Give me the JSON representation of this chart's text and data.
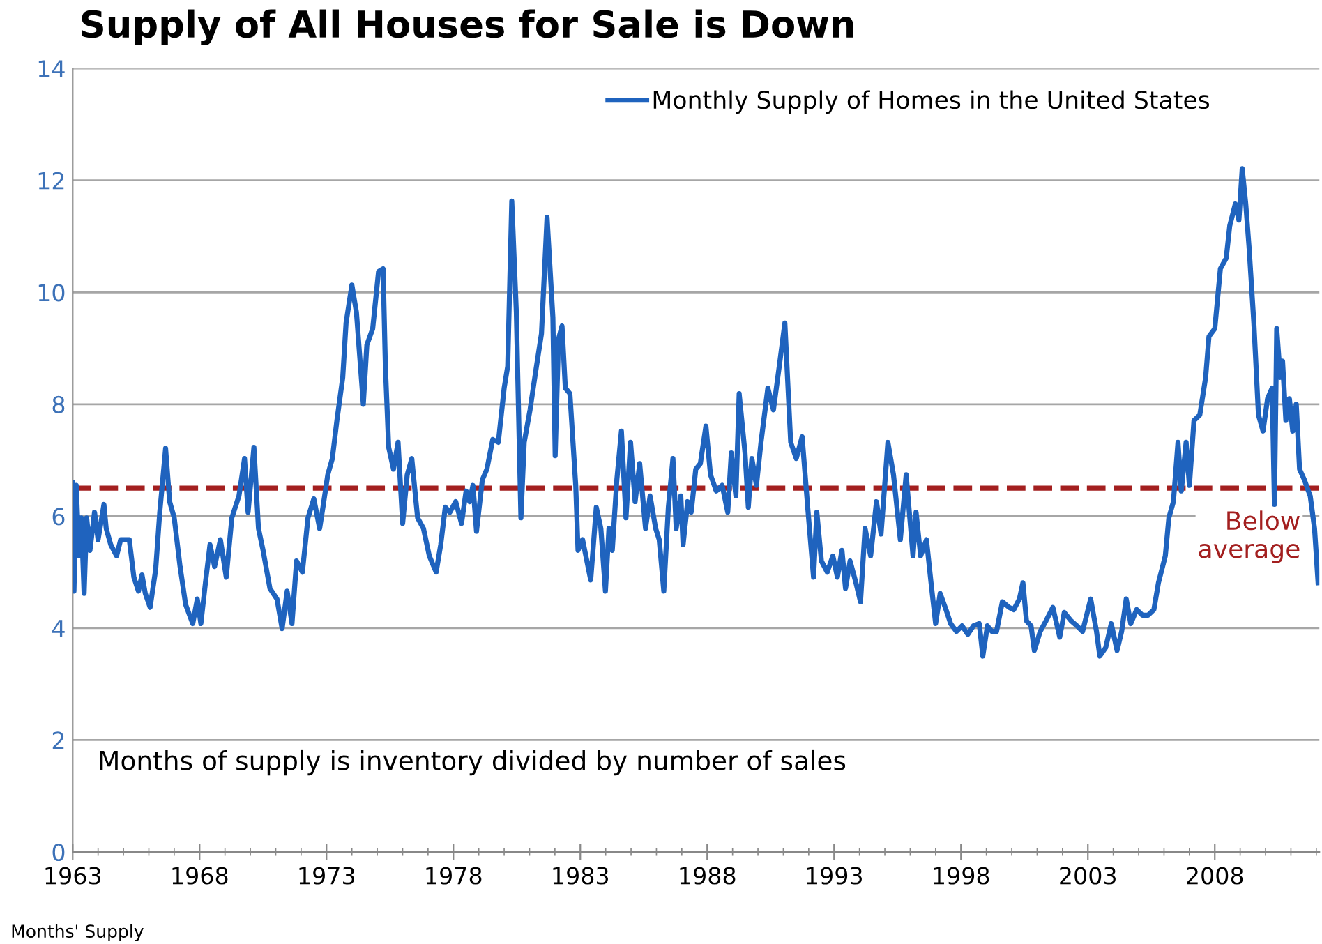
{
  "chart_data": {
    "type": "line",
    "title": "Supply of All Houses for Sale is Down",
    "annotations": [
      "Months of supply is inventory divided by number of sales",
      "Months' Supply"
    ],
    "x": [
      1963.0,
      1963.05,
      1963.14,
      1963.25,
      1963.34,
      1963.45,
      1963.55,
      1963.68,
      1963.86,
      1964.0,
      1964.23,
      1964.32,
      1964.5,
      1964.73,
      1964.89,
      1965.23,
      1965.41,
      1965.59,
      1965.73,
      1965.86,
      1966.05,
      1966.27,
      1966.43,
      1966.66,
      1966.82,
      1967.0,
      1967.23,
      1967.45,
      1967.73,
      1967.91,
      1968.05,
      1968.23,
      1968.41,
      1968.59,
      1968.82,
      1969.05,
      1969.27,
      1969.55,
      1969.77,
      1969.91,
      1970.14,
      1970.32,
      1970.5,
      1970.77,
      1971.05,
      1971.25,
      1971.45,
      1971.64,
      1971.82,
      1972.05,
      1972.27,
      1972.5,
      1972.73,
      1972.86,
      1973.05,
      1973.23,
      1973.41,
      1973.64,
      1973.77,
      1974.0,
      1974.18,
      1974.45,
      1974.59,
      1974.82,
      1975.05,
      1975.23,
      1975.32,
      1975.45,
      1975.64,
      1975.82,
      1976.0,
      1976.18,
      1976.36,
      1976.59,
      1976.82,
      1977.05,
      1977.32,
      1977.5,
      1977.68,
      1977.86,
      1978.09,
      1978.32,
      1978.5,
      1978.64,
      1978.77,
      1978.91,
      1979.14,
      1979.32,
      1979.55,
      1979.77,
      1980.0,
      1980.14,
      1980.3,
      1980.48,
      1980.66,
      1980.79,
      1981.02,
      1981.24,
      1981.47,
      1981.69,
      1981.92,
      1982.01,
      1982.14,
      1982.28,
      1982.41,
      1982.59,
      1982.82,
      1982.91,
      1983.09,
      1983.41,
      1983.63,
      1983.81,
      1983.99,
      1984.13,
      1984.26,
      1984.44,
      1984.62,
      1984.8,
      1984.98,
      1985.16,
      1985.34,
      1985.57,
      1985.75,
      1985.97,
      1986.11,
      1986.29,
      1986.47,
      1986.65,
      1986.78,
      1986.96,
      1987.05,
      1987.23,
      1987.37,
      1987.55,
      1987.73,
      1987.95,
      1988.13,
      1988.36,
      1988.59,
      1988.81,
      1988.95,
      1989.13,
      1989.26,
      1989.49,
      1989.62,
      1989.76,
      1989.94,
      1990.12,
      1990.39,
      1990.61,
      1990.84,
      1991.06,
      1991.29,
      1991.51,
      1991.74,
      1991.96,
      1992.19,
      1992.32,
      1992.5,
      1992.73,
      1992.95,
      1993.13,
      1993.31,
      1993.45,
      1993.63,
      1993.86,
      1994.04,
      1994.22,
      1994.44,
      1994.67,
      1994.85,
      1995.12,
      1995.34,
      1995.61,
      1995.84,
      1996.11,
      1996.23,
      1996.41,
      1996.64,
      1996.82,
      1997.0,
      1997.18,
      1997.41,
      1997.59,
      1997.82,
      1998.04,
      1998.27,
      1998.49,
      1998.72,
      1998.86,
      1999.04,
      1999.22,
      1999.4,
      1999.63,
      1999.9,
      2000.08,
      2000.3,
      2000.44,
      2000.58,
      2000.76,
      2000.89,
      2001.12,
      2001.35,
      2001.62,
      2001.89,
      2002.07,
      2002.34,
      2002.57,
      2002.79,
      2003.11,
      2003.34,
      2003.47,
      2003.7,
      2003.92,
      2004.15,
      2004.33,
      2004.51,
      2004.69,
      2004.92,
      2005.15,
      2005.37,
      2005.6,
      2005.78,
      2006.05,
      2006.19,
      2006.37,
      2006.55,
      2006.68,
      2006.87,
      2007.0,
      2007.18,
      2007.41,
      2007.64,
      2007.77,
      2008.0,
      2008.22,
      2008.45,
      2008.59,
      2008.81,
      2008.95,
      2009.08,
      2009.22,
      2009.35,
      2009.54,
      2009.72,
      2009.9,
      2010.08,
      2010.26,
      2010.35,
      2010.44,
      2010.58,
      2010.67,
      2010.8,
      2010.94,
      2011.07,
      2011.21,
      2011.34,
      2011.53,
      2011.76,
      2011.93,
      2012.07
    ],
    "series": [
      {
        "name": "Monthly Supply of Homes in the United States",
        "color": "#1f63be",
        "values": [
          6.6,
          4.66,
          6.55,
          5.29,
          5.97,
          4.62,
          5.97,
          5.39,
          6.07,
          5.58,
          6.21,
          5.78,
          5.49,
          5.29,
          5.58,
          5.58,
          4.91,
          4.66,
          4.95,
          4.62,
          4.37,
          5.05,
          6.07,
          7.21,
          6.26,
          5.97,
          5.1,
          4.42,
          4.08,
          4.52,
          4.08,
          4.81,
          5.49,
          5.1,
          5.58,
          4.91,
          5.97,
          6.36,
          7.03,
          6.07,
          7.23,
          5.78,
          5.39,
          4.71,
          4.52,
          3.99,
          4.66,
          4.08,
          5.2,
          5.0,
          5.97,
          6.31,
          5.78,
          6.16,
          6.74,
          7.03,
          7.71,
          8.48,
          9.45,
          10.13,
          9.64,
          8.0,
          9.06,
          9.35,
          10.37,
          10.42,
          8.68,
          7.23,
          6.84,
          7.32,
          5.87,
          6.74,
          7.03,
          5.97,
          5.78,
          5.29,
          5.0,
          5.49,
          6.16,
          6.07,
          6.26,
          5.87,
          6.45,
          6.26,
          6.55,
          5.73,
          6.65,
          6.84,
          7.37,
          7.32,
          8.29,
          8.68,
          11.63,
          9.64,
          5.97,
          7.32,
          7.9,
          8.58,
          9.26,
          11.34,
          9.55,
          7.08,
          9.16,
          9.4,
          8.29,
          8.19,
          6.55,
          5.39,
          5.58,
          4.86,
          6.16,
          5.78,
          4.66,
          5.78,
          5.39,
          6.65,
          7.52,
          5.97,
          7.32,
          6.26,
          6.94,
          5.78,
          6.36,
          5.78,
          5.58,
          4.66,
          6.16,
          7.03,
          5.78,
          6.36,
          5.49,
          6.26,
          6.07,
          6.84,
          6.94,
          7.61,
          6.74,
          6.45,
          6.55,
          6.07,
          7.13,
          6.36,
          8.19,
          7.13,
          6.16,
          7.03,
          6.55,
          7.32,
          8.29,
          7.9,
          8.68,
          9.45,
          7.32,
          7.03,
          7.42,
          6.16,
          4.91,
          6.07,
          5.2,
          5.0,
          5.29,
          4.91,
          5.39,
          4.71,
          5.2,
          4.81,
          4.47,
          5.78,
          5.29,
          6.26,
          5.68,
          7.32,
          6.74,
          5.58,
          6.74,
          5.29,
          6.07,
          5.29,
          5.58,
          4.81,
          4.08,
          4.62,
          4.33,
          4.08,
          3.94,
          4.04,
          3.89,
          4.04,
          4.08,
          3.5,
          4.04,
          3.94,
          3.94,
          4.47,
          4.37,
          4.33,
          4.52,
          4.81,
          4.13,
          4.04,
          3.6,
          3.94,
          4.13,
          4.37,
          3.84,
          4.28,
          4.13,
          4.04,
          3.94,
          4.52,
          3.94,
          3.5,
          3.65,
          4.08,
          3.6,
          3.94,
          4.52,
          4.08,
          4.33,
          4.23,
          4.23,
          4.33,
          4.81,
          5.29,
          5.97,
          6.26,
          7.32,
          6.45,
          7.32,
          6.55,
          7.71,
          7.81,
          8.48,
          9.21,
          9.35,
          10.42,
          10.61,
          11.19,
          11.58,
          11.29,
          12.21,
          11.58,
          10.81,
          9.45,
          7.81,
          7.52,
          8.1,
          8.29,
          6.21,
          9.35,
          8.48,
          8.77,
          7.71,
          8.1,
          7.52,
          8.0,
          6.84,
          6.65,
          6.36,
          5.78,
          4.81
        ]
      }
    ],
    "xlim": [
      1963,
      2012.12
    ],
    "xticks": [
      1963,
      1968,
      1973,
      1978,
      1983,
      1988,
      1993,
      1998,
      2003,
      2008
    ],
    "ylim": [
      0,
      14
    ],
    "yticks": [
      0,
      2,
      4,
      6,
      8,
      10,
      12,
      14
    ],
    "ref_lines": [
      {
        "axis": "y",
        "value": 6.5,
        "label": "Below average",
        "color": "#a31f1f",
        "line_style": "dashed"
      }
    ],
    "grid": "y",
    "legend": "top right",
    "marker": "none",
    "line_style": "solid"
  }
}
